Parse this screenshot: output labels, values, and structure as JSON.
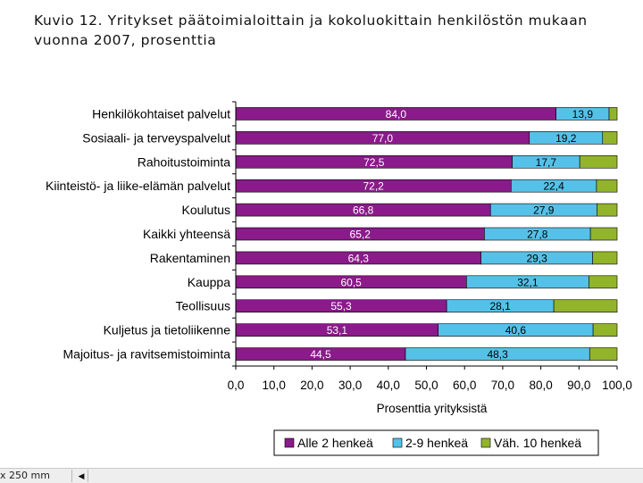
{
  "title": {
    "line1": "Kuvio 12. Yritykset päätoimialoittain ja kokoluokittain henkilöstön mukaan",
    "line2": "vuonna 2007, prosenttia"
  },
  "statusbar": {
    "size_text": "x 250 mm",
    "nav_icon": "triangle-left-icon"
  },
  "colors": {
    "series1": "#8b1a8b",
    "series2": "#55c1e8",
    "series3": "#92b42b",
    "grid": "#000000"
  },
  "chart_data": {
    "type": "bar",
    "orientation": "horizontal",
    "stacked": true,
    "categories": [
      "Henkilökohtaiset palvelut",
      "Sosiaali- ja terveyspalvelut",
      "Rahoitustoiminta",
      "Kiinteistö- ja liike-elämän palvelut",
      "Koulutus",
      "Kaikki yhteensä",
      "Rakentaminen",
      "Kauppa",
      "Teollisuus",
      "Kuljetus ja tietoliikenne",
      "Majoitus- ja ravitsemistoiminta"
    ],
    "series": [
      {
        "name": "Alle 2 henkeä",
        "values": [
          84.0,
          77.0,
          72.5,
          72.2,
          66.8,
          65.2,
          64.3,
          60.5,
          55.3,
          53.1,
          44.5
        ],
        "labels": [
          "84,0",
          "77,0",
          "72,5",
          "72,2",
          "66,8",
          "65,2",
          "64,3",
          "60,5",
          "55,3",
          "53,1",
          "44,5"
        ]
      },
      {
        "name": "2-9 henkeä",
        "values": [
          13.9,
          19.2,
          17.7,
          22.4,
          27.9,
          27.8,
          29.3,
          32.1,
          28.1,
          40.6,
          48.3
        ],
        "labels": [
          "13,9",
          "19,2",
          "17,7",
          "22,4",
          "27,9",
          "27,8",
          "29,3",
          "32,1",
          "28,1",
          "40,6",
          "48,3"
        ]
      },
      {
        "name": "Väh. 10 henkeä",
        "values": [
          2.1,
          3.8,
          9.8,
          5.4,
          5.3,
          7.0,
          6.4,
          7.4,
          16.6,
          6.3,
          7.2
        ],
        "labels": []
      }
    ],
    "xticks": [
      "0,0",
      "10,0",
      "20,0",
      "30,0",
      "40,0",
      "50,0",
      "60,0",
      "70,0",
      "80,0",
      "90,0",
      "100,0"
    ],
    "xlim": [
      0,
      100
    ],
    "xlabel": "Prosenttia yrityksistä",
    "ylabel": "",
    "grid": false,
    "legend_position": "bottom"
  }
}
